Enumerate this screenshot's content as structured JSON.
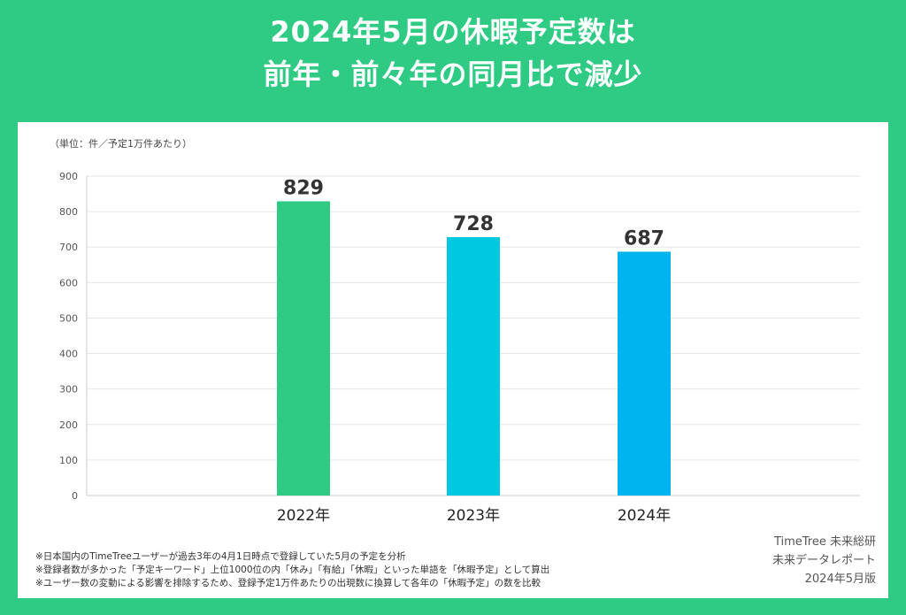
{
  "title": {
    "line1": "2024年5月の休暇予定数は",
    "line2": "前年・前々年の同月比で減少"
  },
  "unit_note": "（単位：件／予定1万件あたり）",
  "notes": [
    "※日本国内のTimeTreeユーザーが過去3年の4月1日時点で登録していた5月の予定を分析",
    "※登録者数が多かった「予定キーワード」上位1000位の内「休み」「有給」「休暇」といった単語を「休暇予定」として算出",
    "※ユーザー数の変動による影響を排除するため、登録予定1万件あたりの出現数に換算して各年の「休暇予定」の数を比較"
  ],
  "credit": {
    "line1": "TimeTree 未来総研",
    "line2": "未来データレポート",
    "line3": "2024年5月版"
  },
  "colors": {
    "background": "#2fcb84",
    "panel": "#ffffff",
    "bar_2022": "#2fcb84",
    "bar_2023": "#00c8e0",
    "bar_2024": "#00b4f0",
    "grid": "#e6e6e6"
  },
  "chart_data": {
    "type": "bar",
    "categories": [
      "2022年",
      "2023年",
      "2024年"
    ],
    "values": [
      829,
      728,
      687
    ],
    "data_labels": [
      "829",
      "728",
      "687"
    ],
    "bar_colors": [
      "#2fcb84",
      "#00c8e0",
      "#00b4f0"
    ],
    "yticks": [
      "0",
      "100",
      "200",
      "300",
      "400",
      "500",
      "600",
      "700",
      "800",
      "900"
    ],
    "ylim": [
      0,
      900
    ],
    "grid": true
  }
}
